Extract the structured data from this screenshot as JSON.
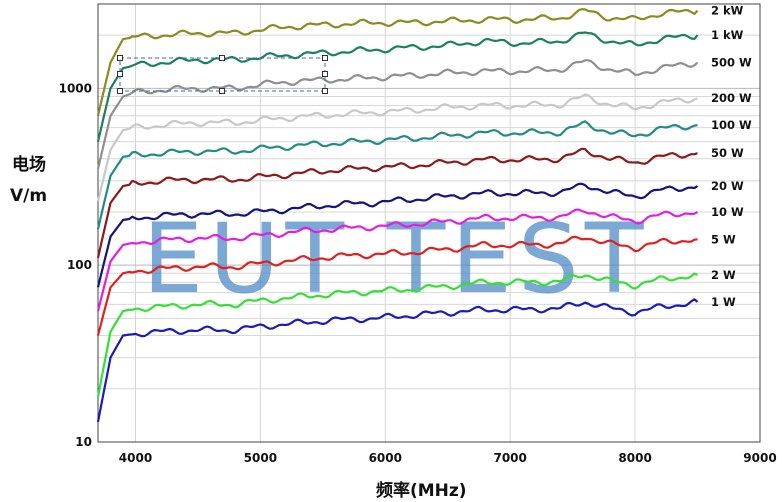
{
  "chart_data": {
    "type": "line",
    "ylabel_line1": "电场",
    "ylabel_line2": "V/m",
    "xlabel": "频率(MHz)",
    "xlim": [
      3700,
      9000
    ],
    "ylim": [
      10,
      3000
    ],
    "y_scale": "log",
    "grid": true,
    "watermark": "EUT TEST",
    "x_ticks": [
      "4000",
      "5000",
      "6000",
      "7000",
      "8000",
      "9000"
    ],
    "y_ticks": [
      "10",
      "100",
      "1000"
    ],
    "series": [
      {
        "name": "2 kW",
        "color": "#8b8b1e",
        "x": [
          3700,
          3800,
          3900,
          4000,
          4200,
          4500,
          4800,
          5000,
          5300,
          5600,
          5900,
          6200,
          6500,
          6800,
          7100,
          7400,
          7600,
          7800,
          8000,
          8200,
          8500
        ],
        "y": [
          700,
          1400,
          1900,
          1950,
          2000,
          2050,
          2050,
          2150,
          2250,
          2300,
          2350,
          2350,
          2400,
          2450,
          2450,
          2500,
          2750,
          2500,
          2450,
          2650,
          2750
        ]
      },
      {
        "name": "1 kW",
        "color": "#1a8060",
        "x": [
          3700,
          3800,
          3900,
          4000,
          4200,
          4500,
          4800,
          5000,
          5300,
          5600,
          5900,
          6200,
          6500,
          6800,
          7100,
          7400,
          7600,
          7800,
          8000,
          8200,
          8500
        ],
        "y": [
          500,
          1000,
          1300,
          1350,
          1400,
          1450,
          1450,
          1500,
          1550,
          1600,
          1650,
          1700,
          1750,
          1850,
          1800,
          1850,
          2050,
          1850,
          1750,
          1900,
          2000
        ]
      },
      {
        "name": "500 W",
        "color": "#8f8f8f",
        "x": [
          3700,
          3800,
          3900,
          4000,
          4200,
          4500,
          4800,
          5000,
          5300,
          5600,
          5900,
          6200,
          6500,
          6800,
          7100,
          7400,
          7600,
          7800,
          8000,
          8200,
          8500
        ],
        "y": [
          350,
          700,
          900,
          950,
          980,
          1000,
          1000,
          1050,
          1100,
          1120,
          1150,
          1180,
          1220,
          1250,
          1250,
          1280,
          1420,
          1280,
          1200,
          1300,
          1400
        ]
      },
      {
        "name": "200 W",
        "color": "#c8c8c8",
        "x": [
          3700,
          3800,
          3900,
          4000,
          4200,
          4500,
          4800,
          5000,
          5300,
          5600,
          5900,
          6200,
          6500,
          6800,
          7100,
          7400,
          7600,
          7800,
          8000,
          8200,
          8500
        ],
        "y": [
          230,
          450,
          580,
          600,
          620,
          640,
          640,
          660,
          690,
          710,
          730,
          750,
          780,
          800,
          800,
          810,
          900,
          810,
          770,
          830,
          880
        ]
      },
      {
        "name": "100 W",
        "color": "#1f8c86",
        "x": [
          3700,
          3800,
          3900,
          4000,
          4200,
          4500,
          4800,
          5000,
          5300,
          5600,
          5900,
          6200,
          6500,
          6800,
          7100,
          7400,
          7600,
          7800,
          8000,
          8200,
          8500
        ],
        "y": [
          160,
          320,
          410,
          420,
          430,
          440,
          440,
          455,
          475,
          490,
          505,
          520,
          540,
          560,
          560,
          565,
          630,
          565,
          540,
          590,
          620
        ]
      },
      {
        "name": "50 W",
        "color": "#8b1a1a",
        "x": [
          3700,
          3800,
          3900,
          4000,
          4200,
          4500,
          4800,
          5000,
          5300,
          5600,
          5900,
          6200,
          6500,
          6800,
          7100,
          7400,
          7600,
          7800,
          8000,
          8200,
          8500
        ],
        "y": [
          110,
          225,
          280,
          290,
          300,
          305,
          305,
          315,
          330,
          345,
          355,
          365,
          380,
          395,
          395,
          400,
          445,
          400,
          380,
          410,
          430
        ]
      },
      {
        "name": "20 W",
        "color": "#14147a",
        "x": [
          3700,
          3800,
          3900,
          4000,
          4200,
          4500,
          4800,
          5000,
          5300,
          5600,
          5900,
          6200,
          6500,
          6800,
          7100,
          7400,
          7600,
          7800,
          8000,
          8200,
          8500
        ],
        "y": [
          75,
          145,
          180,
          185,
          190,
          195,
          195,
          200,
          210,
          220,
          225,
          235,
          245,
          255,
          255,
          258,
          285,
          258,
          245,
          265,
          280
        ]
      },
      {
        "name": "10 W",
        "color": "#e020e0",
        "x": [
          3700,
          3800,
          3900,
          4000,
          4200,
          4500,
          4800,
          5000,
          5300,
          5600,
          5900,
          6200,
          6500,
          6800,
          7100,
          7400,
          7600,
          7800,
          8000,
          8200,
          8500
        ],
        "y": [
          55,
          105,
          130,
          135,
          138,
          142,
          142,
          147,
          155,
          160,
          165,
          170,
          177,
          185,
          185,
          187,
          205,
          187,
          178,
          192,
          200
        ]
      },
      {
        "name": "5 W",
        "color": "#e02020",
        "x": [
          3700,
          3800,
          3900,
          4000,
          4200,
          4500,
          4800,
          5000,
          5300,
          5600,
          5900,
          6200,
          6500,
          6800,
          7100,
          7400,
          7600,
          7800,
          8000,
          8200,
          8500
        ],
        "y": [
          40,
          75,
          90,
          93,
          95,
          98,
          98,
          102,
          107,
          112,
          115,
          118,
          123,
          130,
          130,
          132,
          145,
          132,
          125,
          135,
          140
        ]
      },
      {
        "name": "2 W",
        "color": "#33e033",
        "x": [
          3700,
          3800,
          3900,
          4000,
          4200,
          4500,
          4800,
          5000,
          5300,
          5600,
          5900,
          6200,
          6500,
          6800,
          7100,
          7400,
          7600,
          7800,
          8000,
          8200,
          8500
        ],
        "y": [
          18,
          42,
          55,
          57,
          58,
          60,
          60,
          63,
          66,
          69,
          71,
          73,
          76,
          80,
          80,
          81,
          89,
          81,
          77,
          83,
          88
        ]
      },
      {
        "name": "1 W",
        "color": "#1b1bb5",
        "x": [
          3700,
          3800,
          3900,
          4000,
          4200,
          4500,
          4800,
          5000,
          5300,
          5600,
          5900,
          6200,
          6500,
          6800,
          7100,
          7400,
          7600,
          7800,
          8000,
          8200,
          8500
        ],
        "y": [
          13,
          30,
          40,
          41,
          42,
          43,
          43,
          45,
          47,
          49,
          50,
          52,
          54,
          56,
          56,
          57,
          62,
          57,
          54,
          58,
          62
        ]
      }
    ]
  }
}
